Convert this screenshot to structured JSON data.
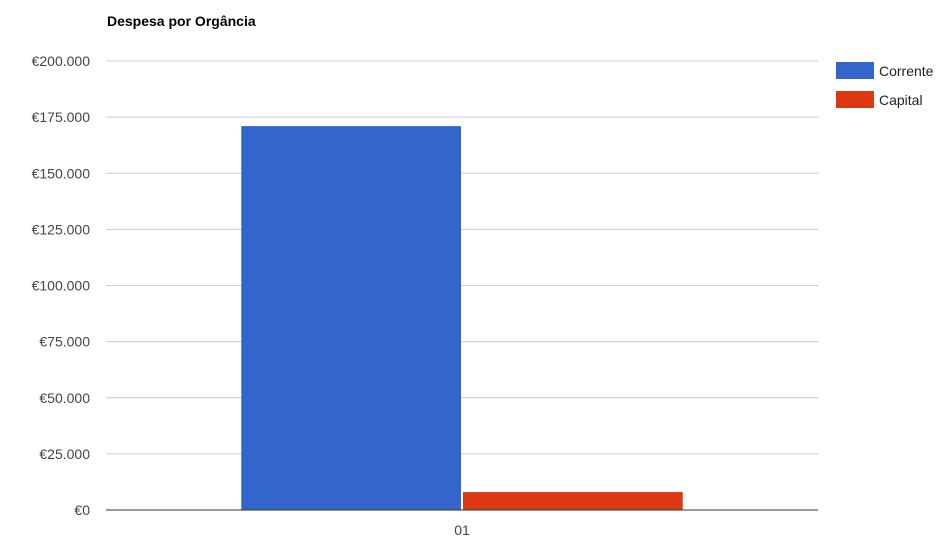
{
  "chart_data": {
    "type": "bar",
    "title": "Despesa por Orgância",
    "categories": [
      "01"
    ],
    "series": [
      {
        "name": "Corrente",
        "values": [
          171000
        ],
        "color": "#3366cc"
      },
      {
        "name": "Capital",
        "values": [
          8000
        ],
        "color": "#dc3912"
      }
    ],
    "ylim": [
      0,
      200000
    ],
    "yticks": [
      "€0",
      "€25.000",
      "€50.000",
      "€75.000",
      "€100.000",
      "€125.000",
      "€150.000",
      "€175.000",
      "€200.000"
    ],
    "xlabel": "",
    "ylabel": "",
    "grid": true,
    "legend": "right"
  }
}
